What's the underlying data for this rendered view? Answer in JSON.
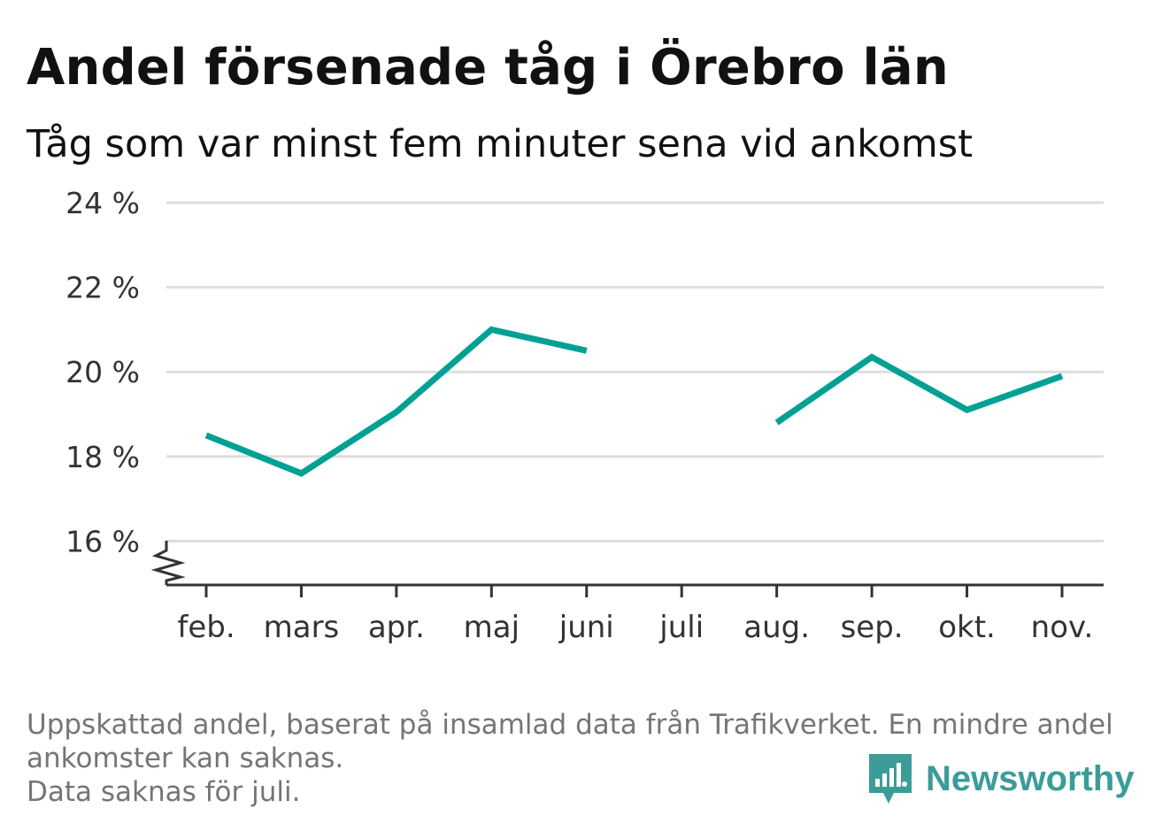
{
  "title": "Andel försenade tåg i Örebro län",
  "subtitle": "Tåg som var minst fem minuter sena vid ankomst",
  "notes": [
    "Uppskattad andel, baserat på insamlad data från Trafikverket. En mindre andel",
    "ankomster kan saknas.",
    "Data saknas för juli."
  ],
  "brand": {
    "name": "Newsworthy",
    "icon": "newsworthy-logo-icon"
  },
  "colors": {
    "line": "#00a194",
    "grid": "#dddddd",
    "axis": "#333333",
    "brand": "#3c9c98"
  },
  "chart_data": {
    "type": "line",
    "categories": [
      "feb.",
      "mars",
      "apr.",
      "maj",
      "juni",
      "juli",
      "aug.",
      "sep.",
      "okt.",
      "nov."
    ],
    "series": [
      {
        "values": [
          18.5,
          17.6,
          19.05,
          21.0,
          20.5,
          null,
          18.8,
          20.35,
          19.1,
          19.9
        ]
      }
    ],
    "ylim": [
      15,
      24
    ],
    "yticks": [
      16,
      18,
      20,
      22,
      24
    ],
    "ytick_labels": [
      "16 %",
      "18 %",
      "20 %",
      "22 %",
      "24 %"
    ],
    "y_axis_break": true,
    "grid": true,
    "xlabel": "",
    "ylabel": ""
  }
}
